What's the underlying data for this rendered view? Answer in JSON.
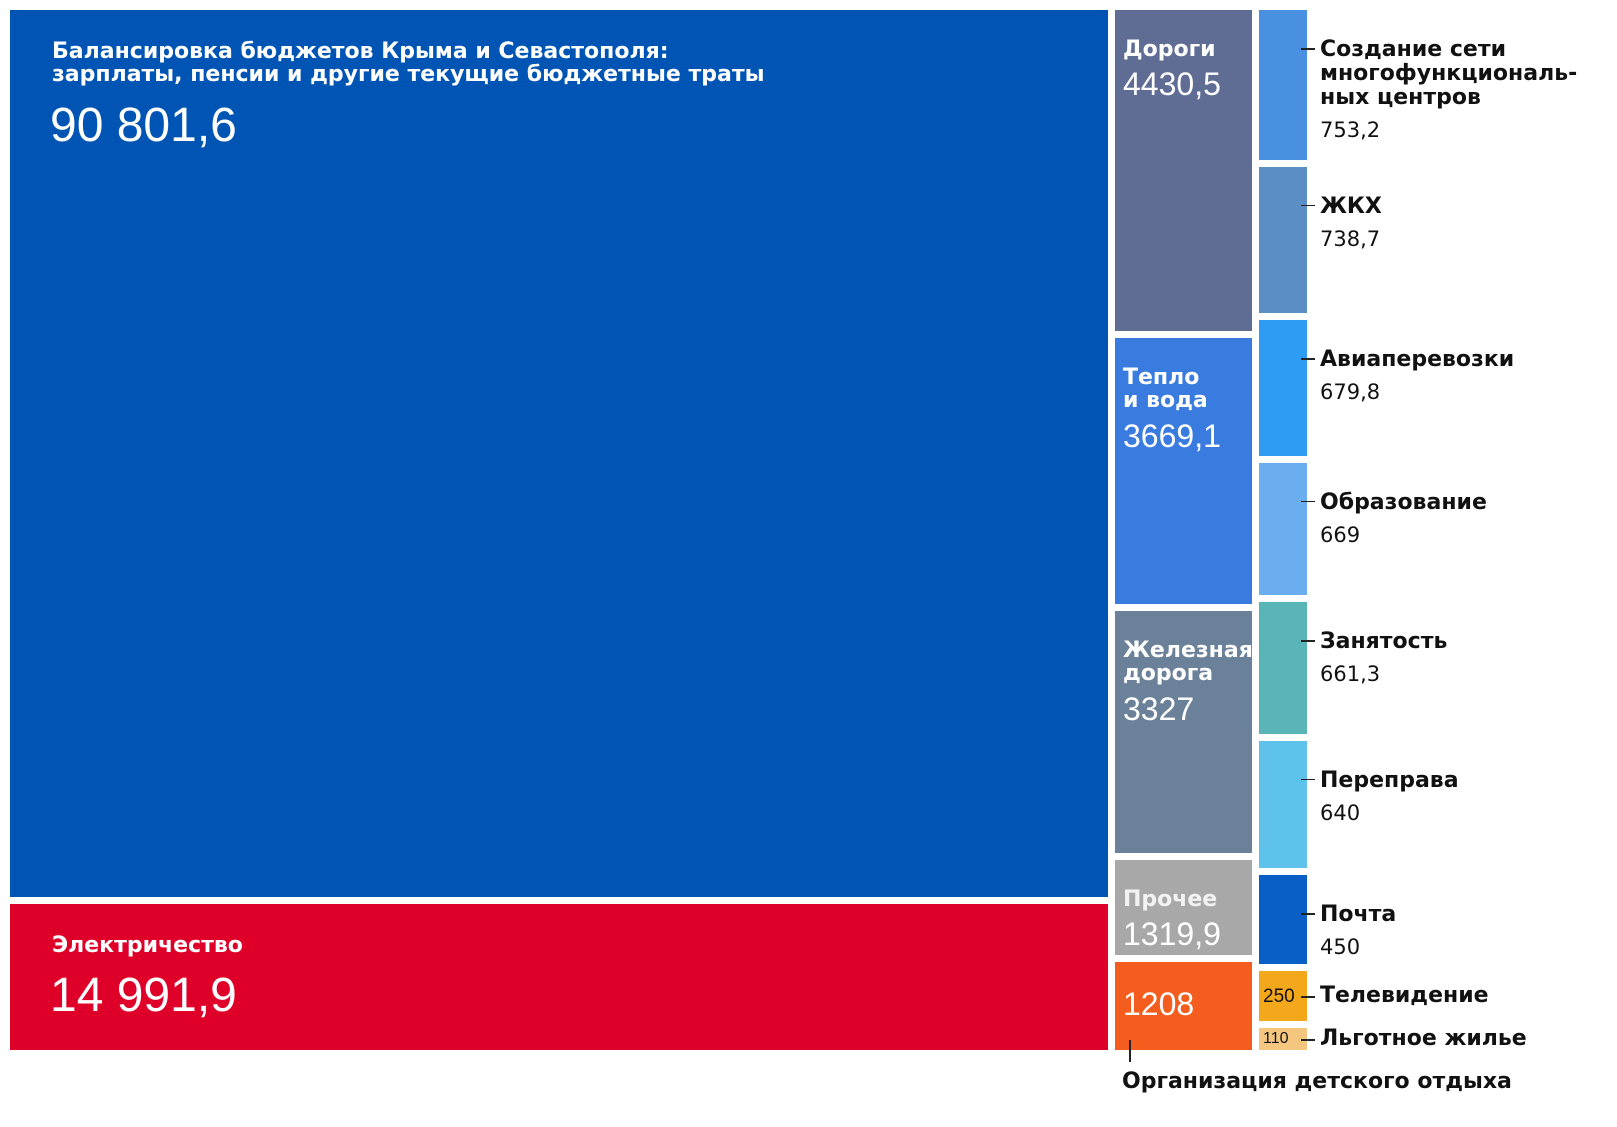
{
  "chart_data": {
    "type": "treemap",
    "items": [
      {
        "label": "Балансировка бюджетов Крыма и Севастополя:\nзарплаты, пенсии и другие текущие бюджетные траты",
        "value": 90801.6,
        "value_text": "90 801,6",
        "color": "#0055b4"
      },
      {
        "label": "Электричество",
        "value": 14991.9,
        "value_text": "14 991,9",
        "color": "#de0029"
      },
      {
        "label": "Дороги",
        "value": 4430.5,
        "value_text": "4430,5",
        "color": "#5f6d94"
      },
      {
        "label": "Тепло\nи вода",
        "value": 3669.1,
        "value_text": "3669,1",
        "color": "#3a7be0"
      },
      {
        "label": "Железная\nдорога",
        "value": 3327,
        "value_text": "3327",
        "color": "#6b8199"
      },
      {
        "label": "Прочее",
        "value": 1319.9,
        "value_text": "1319,9",
        "color": "#a8a8a8"
      },
      {
        "label": "Организация детского отдыха",
        "value": 1208,
        "value_text": "1208",
        "color": "#f55d1f"
      },
      {
        "label": "Создание сети\nмногофункциональ-\nных центров",
        "value": 753.2,
        "value_text": "753,2",
        "color": "#4a90e0"
      },
      {
        "label": "ЖКХ",
        "value": 738.7,
        "value_text": "738,7",
        "color": "#5b8ec4"
      },
      {
        "label": "Авиаперевозки",
        "value": 679.8,
        "value_text": "679,8",
        "color": "#2e9cf2"
      },
      {
        "label": "Образование",
        "value": 669,
        "value_text": "669",
        "color": "#6aaef0"
      },
      {
        "label": "Занятость",
        "value": 661.3,
        "value_text": "661,3",
        "color": "#5ab5b8"
      },
      {
        "label": "Переправа",
        "value": 640,
        "value_text": "640",
        "color": "#5ec2ea"
      },
      {
        "label": "Почта",
        "value": 450,
        "value_text": "450",
        "color": "#0a5fc6"
      },
      {
        "label": "Телевидение",
        "value": 250,
        "value_text": "250",
        "color": "#f3a81b"
      },
      {
        "label": "Льготное жилье",
        "value": 110,
        "value_text": "110",
        "color": "#f5c77e"
      }
    ]
  }
}
